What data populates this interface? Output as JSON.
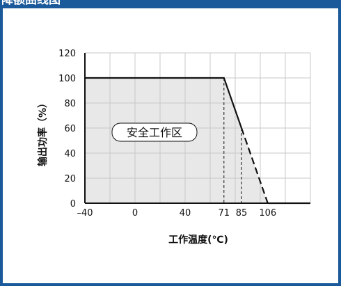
{
  "header": {
    "title": "降额曲线图"
  },
  "chart_data": {
    "type": "line",
    "title": "",
    "xlabel": "工作温度(℃)",
    "ylabel": "输出功率（%）",
    "x_tick_labels": [
      "–40",
      "0",
      "40",
      "71",
      "85",
      "106"
    ],
    "x_ticks": [
      -40,
      0,
      40,
      71,
      85,
      106
    ],
    "y_ticks": [
      0,
      20,
      40,
      60,
      80,
      100,
      120
    ],
    "xlim": [
      -40,
      140
    ],
    "ylim": [
      0,
      120
    ],
    "grid": true,
    "series": [
      {
        "style": "solid",
        "x": [
          -40,
          71,
          85
        ],
        "y": [
          100,
          100,
          60
        ]
      },
      {
        "style": "dashed",
        "x": [
          85,
          106
        ],
        "y": [
          60,
          0
        ]
      },
      {
        "style": "solid",
        "x": [
          106,
          140
        ],
        "y": [
          0,
          0
        ]
      }
    ],
    "vertical_markers": [
      71,
      85
    ],
    "safe_zone": {
      "label": "安全工作区"
    },
    "colors": {
      "safe_area": "#e8e8e8",
      "line": "#111111",
      "grid": "#c8c8c8",
      "frame": "#1a5a9a"
    }
  }
}
